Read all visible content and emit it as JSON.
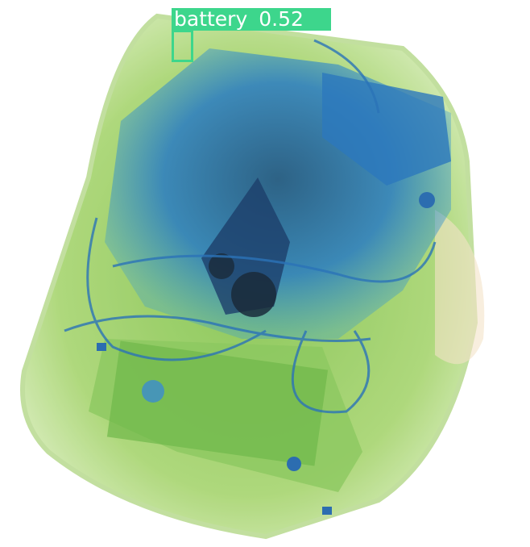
{
  "detections": [
    {
      "label": "battery",
      "score": 0.52
    }
  ]
}
